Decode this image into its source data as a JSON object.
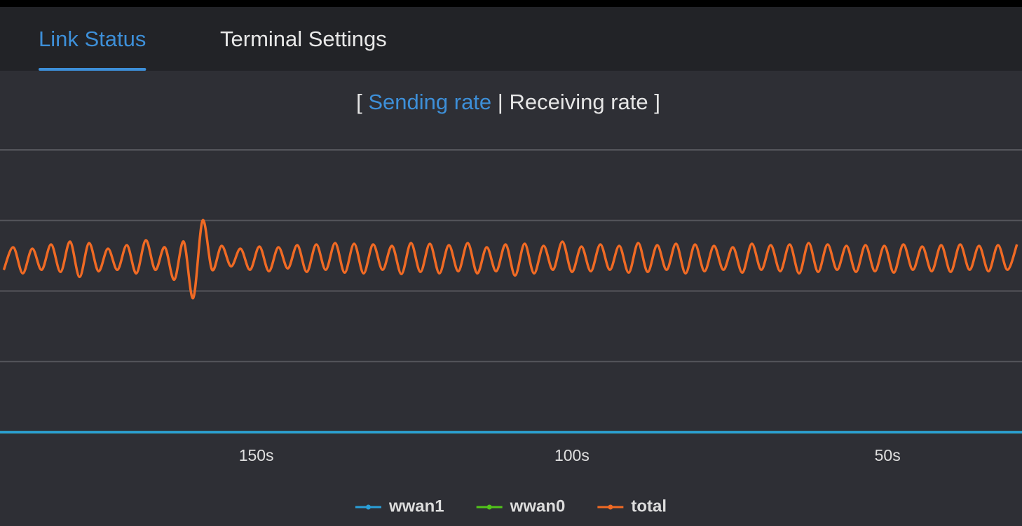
{
  "tabs": [
    {
      "label": "Link Status",
      "active": true
    },
    {
      "label": "Terminal Settings",
      "active": false
    }
  ],
  "rate_toggle": {
    "open": "[",
    "options": [
      "Sending rate",
      "Receiving rate"
    ],
    "separator": "|",
    "close": "]",
    "selected": 0
  },
  "chart_data": {
    "type": "line",
    "xlim": [
      190.6,
      28.7
    ],
    "ylim": [
      0,
      4
    ],
    "xticks": [
      {
        "value": 150,
        "label": "150s"
      },
      {
        "value": 100,
        "label": "100s"
      },
      {
        "value": 50,
        "label": "50s"
      }
    ],
    "yticks": [
      0,
      1,
      2,
      3,
      4
    ],
    "grid": true,
    "smooth": true,
    "legend": "bottom",
    "series": [
      {
        "name": "wwan1",
        "color": "#2a9fd8",
        "x": [
          190.6,
          28.7
        ],
        "values": [
          0,
          0
        ]
      },
      {
        "name": "wwan0",
        "color": "#52c41a",
        "x": [
          190.6,
          28.7
        ],
        "values": [
          0,
          0
        ]
      },
      {
        "name": "total",
        "color": "#f06a24",
        "x": [
          190,
          188.5,
          187,
          185.5,
          184,
          182.5,
          181,
          179.5,
          178,
          176.5,
          175,
          173.5,
          172,
          170.5,
          169,
          167.5,
          166,
          164.5,
          163,
          161.5,
          160,
          158.5,
          157,
          155.5,
          154,
          152.5,
          151,
          149.5,
          148,
          146.5,
          145,
          143.5,
          142,
          140.5,
          139,
          137.5,
          136,
          134.5,
          133,
          131.5,
          130,
          128.5,
          127,
          125.5,
          124,
          122.5,
          121,
          119.5,
          118,
          116.5,
          115,
          113.5,
          112,
          110.5,
          109,
          107.5,
          106,
          104.5,
          103,
          101.5,
          100,
          98.5,
          97,
          95.5,
          94,
          92.5,
          91,
          89.5,
          88,
          86.5,
          85,
          83.5,
          82,
          80.5,
          79,
          77.5,
          76,
          74.5,
          73,
          71.5,
          70,
          68.5,
          67,
          65.5,
          64,
          62.5,
          61,
          59.5,
          58,
          56.5,
          55,
          53.5,
          52,
          50.5,
          49,
          47.5,
          46,
          44.5,
          43,
          41.5,
          40,
          38.5,
          37,
          35.5,
          34,
          32.5,
          31,
          29.5
        ],
        "values": [
          2.3,
          2.62,
          2.25,
          2.6,
          2.3,
          2.66,
          2.27,
          2.7,
          2.2,
          2.68,
          2.28,
          2.6,
          2.3,
          2.65,
          2.25,
          2.72,
          2.3,
          2.62,
          2.16,
          2.7,
          1.9,
          3.0,
          2.3,
          2.64,
          2.35,
          2.6,
          2.3,
          2.63,
          2.28,
          2.62,
          2.32,
          2.65,
          2.27,
          2.66,
          2.3,
          2.68,
          2.26,
          2.67,
          2.25,
          2.66,
          2.3,
          2.64,
          2.24,
          2.68,
          2.27,
          2.67,
          2.25,
          2.65,
          2.28,
          2.68,
          2.25,
          2.62,
          2.28,
          2.66,
          2.22,
          2.67,
          2.25,
          2.64,
          2.3,
          2.7,
          2.27,
          2.63,
          2.28,
          2.66,
          2.3,
          2.64,
          2.26,
          2.68,
          2.27,
          2.65,
          2.3,
          2.67,
          2.25,
          2.66,
          2.28,
          2.64,
          2.3,
          2.62,
          2.26,
          2.67,
          2.3,
          2.65,
          2.28,
          2.66,
          2.25,
          2.68,
          2.27,
          2.66,
          2.3,
          2.64,
          2.27,
          2.65,
          2.28,
          2.64,
          2.26,
          2.66,
          2.3,
          2.63,
          2.28,
          2.65,
          2.27,
          2.66,
          2.3,
          2.64,
          2.28,
          2.65,
          2.3,
          2.66
        ]
      }
    ]
  }
}
